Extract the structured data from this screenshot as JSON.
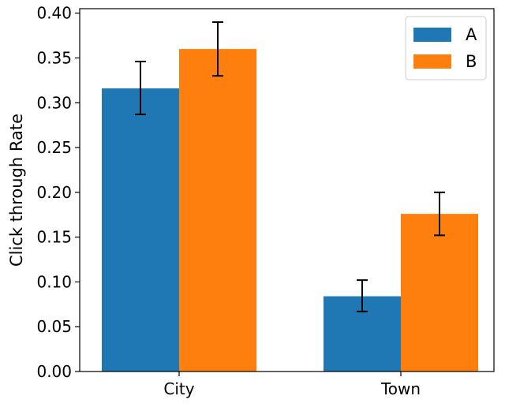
{
  "chart_data": {
    "type": "bar",
    "categories": [
      "City",
      "Town"
    ],
    "series": [
      {
        "name": "A",
        "color": "#1f77b4",
        "values": [
          0.316,
          0.084
        ],
        "err_low": [
          0.287,
          0.067
        ],
        "err_high": [
          0.346,
          0.102
        ]
      },
      {
        "name": "B",
        "color": "#ff7f0e",
        "values": [
          0.36,
          0.176
        ],
        "err_low": [
          0.33,
          0.152
        ],
        "err_high": [
          0.39,
          0.2
        ]
      }
    ],
    "ylabel": "Click through Rate",
    "xlabel": "",
    "ylim": [
      0,
      0.405
    ],
    "yticks": [
      "0.00",
      "0.05",
      "0.10",
      "0.15",
      "0.20",
      "0.25",
      "0.30",
      "0.35",
      "0.40"
    ],
    "grid": false,
    "legend_position": "top-right"
  }
}
